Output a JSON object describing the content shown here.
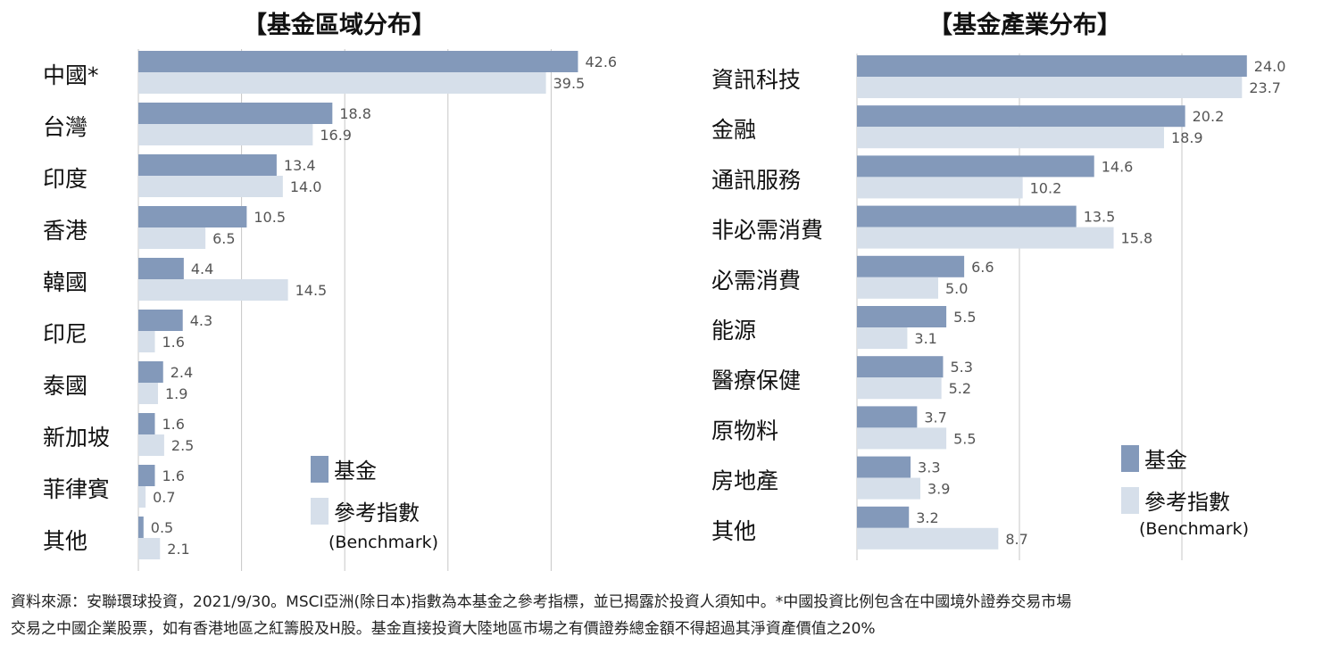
{
  "colors": {
    "fund": "#8399ba",
    "benchmark": "#d6dfea",
    "grid": "#c7c7c7",
    "value_label": "#555555"
  },
  "legend": {
    "fund": "基金",
    "benchmark": "參考指數",
    "benchmark_sub": "(Benchmark)"
  },
  "chart_data": [
    {
      "type": "bar",
      "orientation": "horizontal",
      "title": "【基金區域分布】",
      "categories": [
        "中國*",
        "台灣",
        "印度",
        "香港",
        "韓國",
        "印尼",
        "泰國",
        "新加坡",
        "菲律賓",
        "其他"
      ],
      "series": [
        {
          "name": "基金",
          "values": [
            42.6,
            18.8,
            13.4,
            10.5,
            4.4,
            4.3,
            2.4,
            1.6,
            1.6,
            0.5
          ]
        },
        {
          "name": "參考指數",
          "values": [
            39.5,
            16.9,
            14.0,
            6.5,
            14.5,
            1.6,
            1.9,
            2.5,
            0.7,
            2.1
          ]
        }
      ],
      "xlim": [
        0,
        45
      ],
      "grid": true,
      "legend_position": "bottom-right"
    },
    {
      "type": "bar",
      "orientation": "horizontal",
      "title": "【基金產業分布】",
      "categories": [
        "資訊科技",
        "金融",
        "通訊服務",
        "非必需消費",
        "必需消費",
        "能源",
        "醫療保健",
        "原物料",
        "房地產",
        "其他"
      ],
      "series": [
        {
          "name": "基金",
          "values": [
            24.0,
            20.2,
            14.6,
            13.5,
            6.6,
            5.5,
            5.3,
            3.7,
            3.3,
            3.2
          ]
        },
        {
          "name": "參考指數",
          "values": [
            23.7,
            18.9,
            10.2,
            15.8,
            5.0,
            3.1,
            5.2,
            5.5,
            3.9,
            8.7
          ]
        }
      ],
      "xlim": [
        0,
        27
      ],
      "grid": true,
      "legend_position": "bottom-right"
    }
  ],
  "footnote": {
    "line1": "資料來源：安聯環球投資，2021/9/30。MSCI亞洲(除日本)指數為本基金之參考指標，並已揭露於投資人須知中。*中國投資比例包含在中國境外證券交易市場",
    "line2": "交易之中國企業股票，如有香港地區之紅籌股及H股。基金直接投資大陸地區市場之有價證券總金額不得超過其淨資產價值之20%"
  }
}
